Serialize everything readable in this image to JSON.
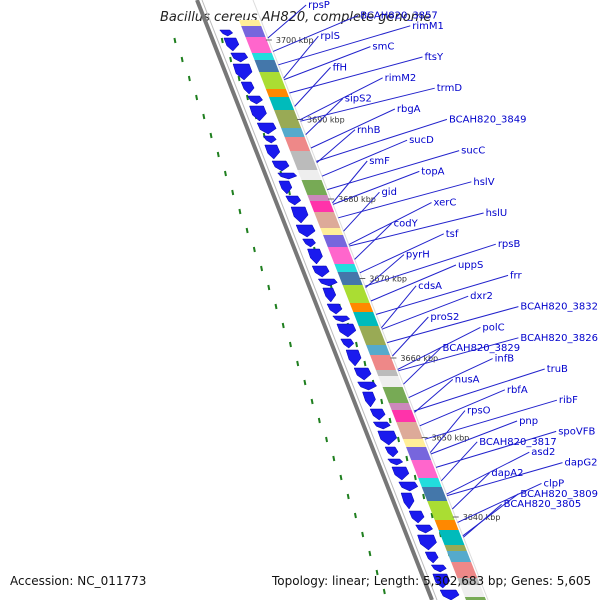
{
  "title": "Bacillus cereus AH820, complete genome",
  "footer": {
    "accession": "Accession: NC_011773",
    "topology": "Topology: linear; Length: 5,302,683 bp; Genes: 5,605"
  },
  "colors": {
    "backbone": "#888888",
    "cds_arrow": "#1a1aee",
    "label": "#0000cc",
    "leader_line": "#2222cc",
    "tick": "#1f7f1f"
  },
  "scale_labels": [
    "3700 kbp",
    "3690 kbp",
    "3680 kbp",
    "3670 kbp",
    "3660 kbp",
    "3650 kbp",
    "3640 kbp"
  ],
  "gene_labels": [
    "rpsP",
    "BCAH820_3857",
    "rimM1",
    "rplS",
    "smC",
    "ftsY",
    "ffH",
    "rimM2",
    "trmD",
    "sipS2",
    "rbgA",
    "BCAH820_3849",
    "rnhB",
    "sucD",
    "sucC",
    "smF",
    "topA",
    "hslV",
    "gid",
    "xerC",
    "hslU",
    "codY",
    "tsf",
    "rpsB",
    "pyrH",
    "uppS",
    "frr",
    "cdsA",
    "dxr2",
    "BCAH820_3832",
    "proS2",
    "polC",
    "BCAH820_3826",
    "BCAH820_3829",
    "infB",
    "truB",
    "nusA",
    "rbfA",
    "ribF",
    "rpsO",
    "pnp",
    "spoVFB",
    "BCAH820_3817",
    "asd2",
    "dapG2",
    "dapA2",
    "clpP",
    "BCAH820_3809",
    "BCAH820_3805"
  ],
  "feature_colors": [
    "#ffee99",
    "#aadd33",
    "#ee8888",
    "#ff33aa",
    "#22dddd",
    "#99aa55",
    "#77aa55",
    "#7766dd",
    "#ff8800",
    "#bbbbbb",
    "#ddaa99",
    "#4477aa",
    "#55aacc",
    "#cc88bb",
    "#ff66cc",
    "#00bbbb",
    "#eeeeee"
  ]
}
